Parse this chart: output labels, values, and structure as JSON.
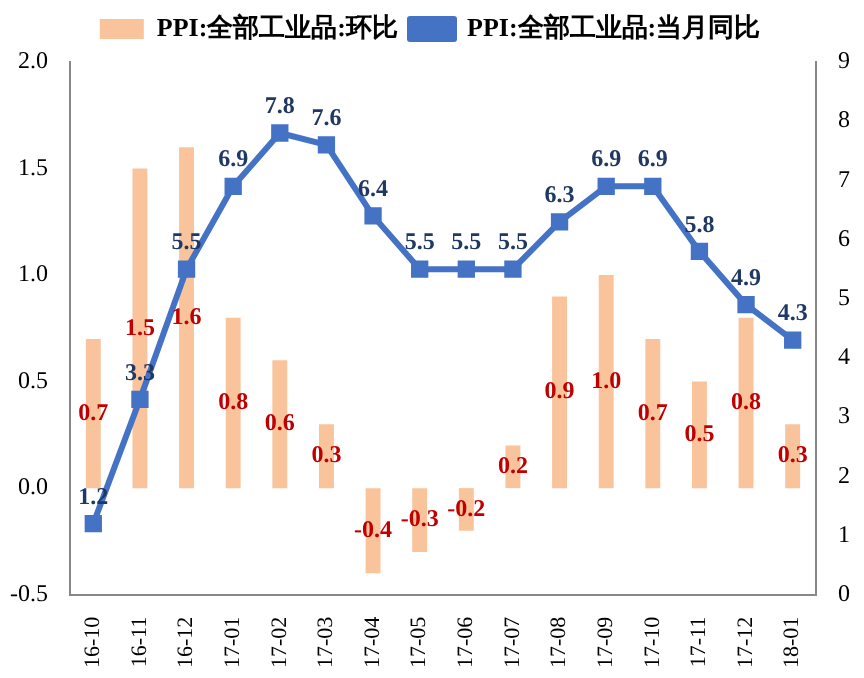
{
  "chart_data": {
    "type": "bar",
    "categories": [
      "16-10",
      "16-11",
      "16-12",
      "17-01",
      "17-02",
      "17-03",
      "17-04",
      "17-05",
      "17-06",
      "17-07",
      "17-08",
      "17-09",
      "17-10",
      "17-11",
      "17-12",
      "18-01"
    ],
    "series": [
      {
        "name": "PPI:全部工业品:环比",
        "color": "#f9c39b",
        "values": [
          0.7,
          1.5,
          1.6,
          0.8,
          0.6,
          0.3,
          -0.4,
          -0.3,
          -0.2,
          0.2,
          0.9,
          1.0,
          0.7,
          0.5,
          0.8,
          0.3
        ],
        "value_labels": [
          "0.7",
          "1.5",
          "1.6",
          "0.8",
          "0.6",
          "0.3",
          "-0.4",
          "-0.3",
          "-0.2",
          "0.2",
          "0.9",
          "1.0",
          "0.7",
          "0.5",
          "0.8",
          "0.3"
        ]
      },
      {
        "name": "PPI:全部工业品:当月同比",
        "type": "line",
        "axis": "y2",
        "color": "#4472c4",
        "values": [
          1.2,
          3.3,
          5.5,
          6.9,
          7.8,
          7.6,
          6.4,
          5.5,
          5.5,
          5.5,
          6.3,
          6.9,
          6.9,
          5.8,
          4.9,
          4.3
        ]
      }
    ],
    "ylim": [
      -0.5,
      2.0
    ],
    "yticks": [
      {
        "value": -0.5,
        "label": "-0.5"
      },
      {
        "value": 0,
        "label": "0.0"
      },
      {
        "value": 0.5,
        "label": "0.5"
      },
      {
        "value": 1,
        "label": "1.0"
      },
      {
        "value": 1.5,
        "label": "1.5"
      },
      {
        "value": 2,
        "label": "2.0"
      }
    ],
    "y2lim": [
      0,
      9
    ],
    "y2ticks": [
      0,
      1,
      2,
      3,
      4,
      5,
      6,
      7,
      8,
      9
    ],
    "data_labels": true,
    "grid": false,
    "legend": "top",
    "marker": "square"
  }
}
